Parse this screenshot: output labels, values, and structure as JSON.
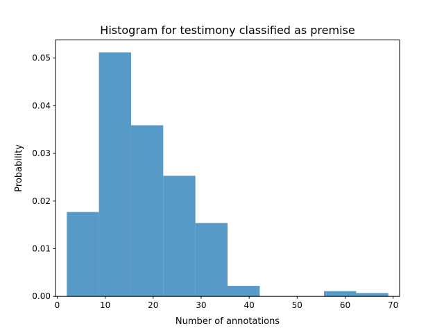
{
  "chart_data": {
    "type": "bar",
    "title": "Histogram for testimony classified as premise",
    "xlabel": "Number of annotations",
    "ylabel": "Probability",
    "xlim": [
      -0.35,
      71.35
    ],
    "ylim": [
      0,
      0.0538
    ],
    "grid": false,
    "bar_color": "#5799c7",
    "bins": [
      {
        "x0": 2.0,
        "x1": 8.7,
        "y": 0.0177
      },
      {
        "x0": 8.7,
        "x1": 15.4,
        "y": 0.0512
      },
      {
        "x0": 15.4,
        "x1": 22.1,
        "y": 0.0359
      },
      {
        "x0": 22.1,
        "x1": 28.8,
        "y": 0.0253
      },
      {
        "x0": 28.8,
        "x1": 35.5,
        "y": 0.0154
      },
      {
        "x0": 35.5,
        "x1": 42.2,
        "y": 0.0022
      },
      {
        "x0": 42.2,
        "x1": 48.9,
        "y": 0.0
      },
      {
        "x0": 48.9,
        "x1": 55.6,
        "y": 0.0
      },
      {
        "x0": 55.6,
        "x1": 62.3,
        "y": 0.0011
      },
      {
        "x0": 62.3,
        "x1": 69.0,
        "y": 0.0007
      }
    ],
    "xticks": [
      0,
      10,
      20,
      30,
      40,
      50,
      60,
      70
    ],
    "xtick_labels": [
      "0",
      "10",
      "20",
      "30",
      "40",
      "50",
      "60",
      "70"
    ],
    "yticks": [
      0.0,
      0.01,
      0.02,
      0.03,
      0.04,
      0.05
    ],
    "ytick_labels": [
      "0.00",
      "0.01",
      "0.02",
      "0.03",
      "0.04",
      "0.05"
    ]
  }
}
